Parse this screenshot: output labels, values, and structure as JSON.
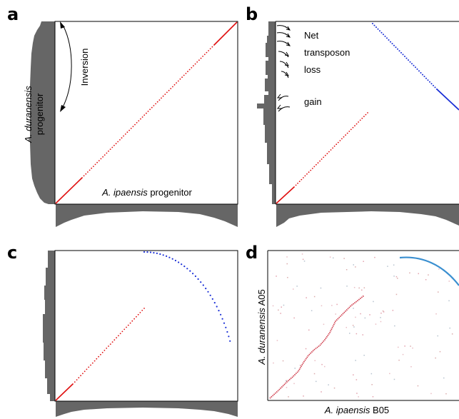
{
  "figure": {
    "panels": [
      {
        "letter": "a",
        "xlabel_italic": "A. ipaensis",
        "xlabel_rest": " progenitor",
        "ylabel_italic": "A. duranensis",
        "ylabel_rest": "progenitor",
        "annotation": "Inversion"
      },
      {
        "letter": "b",
        "annotations": [
          "Net",
          "transposon",
          "loss",
          "gain"
        ]
      },
      {
        "letter": "c"
      },
      {
        "letter": "d",
        "xlabel_italic": "A. ipaensis",
        "xlabel_rest": " B05",
        "ylabel_italic": "A. duranensis",
        "ylabel_rest": " A05"
      }
    ]
  },
  "colors": {
    "forward_dots": "#e01010",
    "inverted_dots": "#1a2fd6",
    "panel_d_forward": "#d0404f",
    "panel_d_inverted": "#3a8fd0",
    "histogram": "#666666",
    "frame": "#000000"
  },
  "chart_data": [
    {
      "type": "scatter",
      "panel": "a",
      "description": "synteny dot plot",
      "series": [
        {
          "color": "red",
          "x": [
            0,
            0.1,
            0.2,
            0.3,
            0.4,
            0.5,
            0.6,
            0.7,
            0.8,
            0.9,
            1.0
          ],
          "y": [
            0,
            0.1,
            0.2,
            0.3,
            0.4,
            0.5,
            0.6,
            0.7,
            0.8,
            0.9,
            1.0
          ]
        }
      ],
      "xlim": [
        0,
        1
      ],
      "ylim": [
        0,
        1
      ]
    },
    {
      "type": "scatter",
      "panel": "b",
      "series": [
        {
          "color": "red",
          "x": [
            0,
            0.1,
            0.2,
            0.3,
            0.4,
            0.5
          ],
          "y": [
            0,
            0.1,
            0.2,
            0.3,
            0.4,
            0.5
          ]
        },
        {
          "color": "blue",
          "x": [
            0.6,
            0.7,
            0.8,
            0.9,
            1.0
          ],
          "y": [
            1.0,
            0.9,
            0.8,
            0.7,
            0.6
          ]
        }
      ],
      "xlim": [
        0,
        1
      ],
      "ylim": [
        0,
        1
      ]
    },
    {
      "type": "scatter",
      "panel": "c",
      "series": [
        {
          "color": "red",
          "x": [
            0,
            0.1,
            0.2,
            0.3,
            0.4,
            0.5
          ],
          "y": [
            0,
            0.1,
            0.2,
            0.3,
            0.4,
            0.5
          ]
        },
        {
          "color": "blue",
          "x": [
            0.5,
            0.6,
            0.7,
            0.8,
            0.9,
            1.0
          ],
          "y": [
            1.0,
            0.99,
            0.96,
            0.9,
            0.8,
            0.6
          ]
        }
      ],
      "xlim": [
        0,
        1
      ],
      "ylim": [
        0,
        1
      ]
    },
    {
      "type": "scatter",
      "panel": "d",
      "series": [
        {
          "color": "red",
          "x": [
            0,
            0.1,
            0.2,
            0.3,
            0.4,
            0.5,
            0.6
          ],
          "y": [
            0,
            0.12,
            0.25,
            0.38,
            0.5,
            0.58,
            0.64
          ]
        },
        {
          "color": "blue",
          "x": [
            0.68,
            0.8,
            0.9,
            1.0
          ],
          "y": [
            1.0,
            0.98,
            0.92,
            0.8
          ]
        }
      ],
      "xlim": [
        0,
        1
      ],
      "ylim": [
        0,
        1
      ]
    }
  ]
}
